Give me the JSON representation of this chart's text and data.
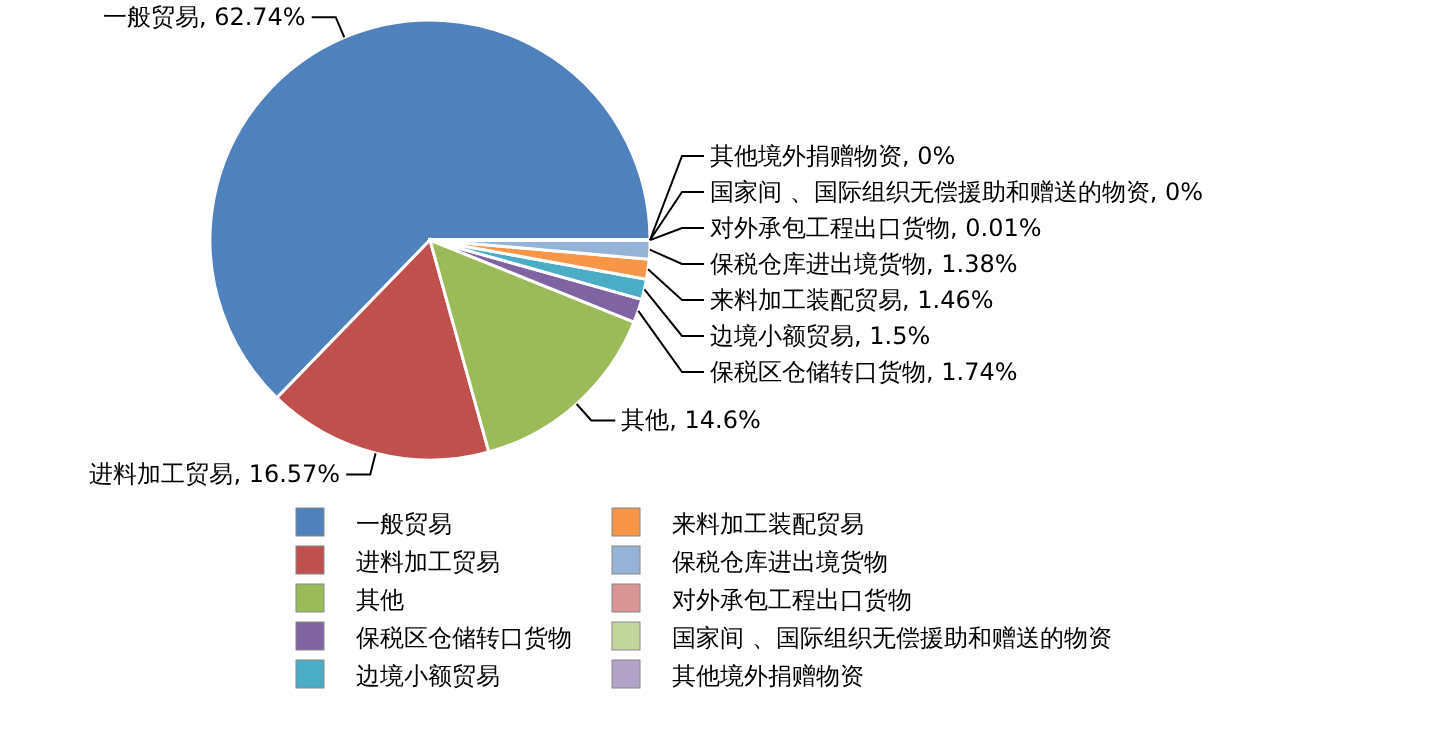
{
  "chart_data": {
    "type": "pie",
    "categories": [
      "一般贸易",
      "进料加工贸易",
      "其他",
      "保税区仓储转口货物",
      "边境小额贸易",
      "来料加工装配贸易",
      "保税仓库进出境货物",
      "对外承包工程出口货物",
      "国家间 、国际组织无偿援助和赠送的物资",
      "其他境外捐赠物资"
    ],
    "values": [
      62.74,
      16.57,
      14.6,
      1.74,
      1.5,
      1.46,
      1.38,
      0.01,
      0,
      0
    ],
    "colors": [
      "#4f81bd",
      "#c0504d",
      "#9bbb59",
      "#8064a2",
      "#4bacc6",
      "#f79646",
      "#95b3d7",
      "#d99694",
      "#c3d69b",
      "#b3a2c7"
    ],
    "value_labels": [
      ", 62.74%",
      ", 16.57%",
      ", 14.6%",
      ", 1.74%",
      ", 1.5%",
      ", 1.46%",
      ", 1.38%",
      ", 0.01%",
      ", 0%",
      ", 0%"
    ],
    "legend": "bottom"
  }
}
